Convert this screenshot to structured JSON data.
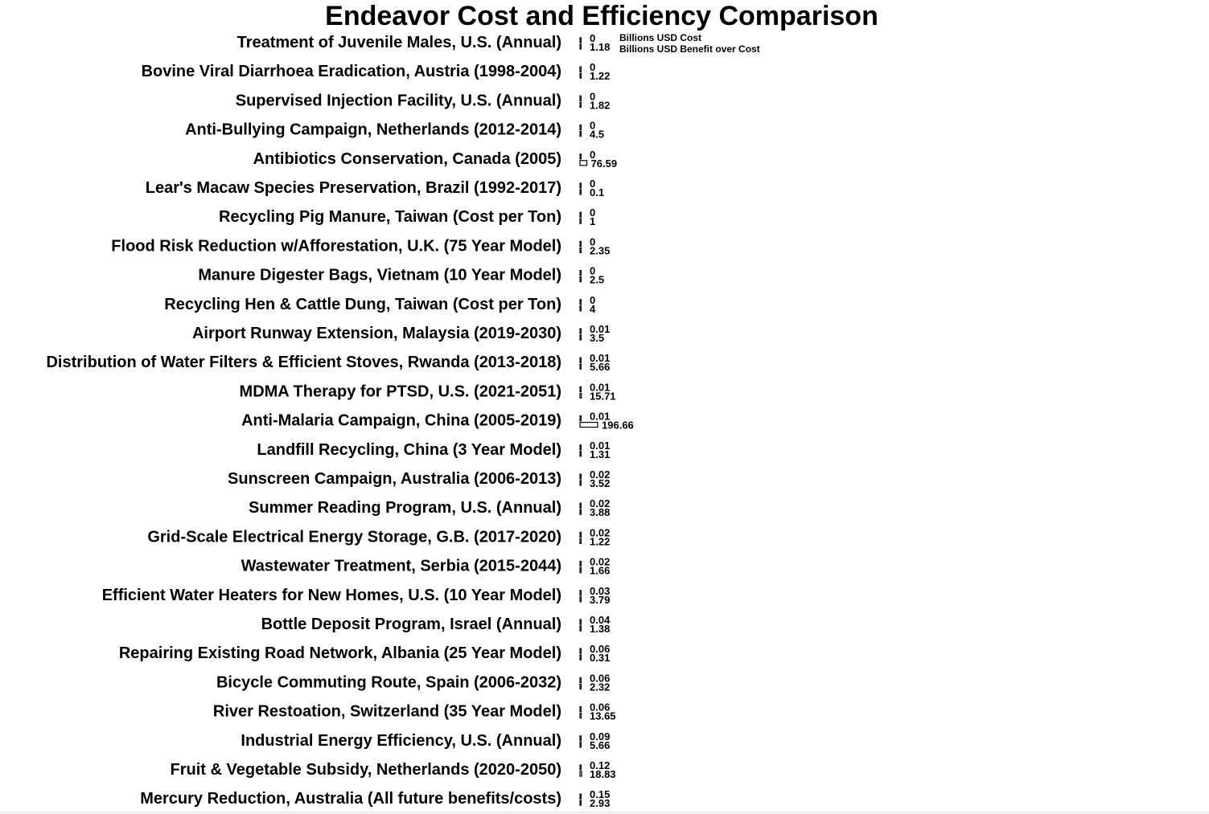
{
  "chart_data": {
    "type": "bar",
    "orientation": "horizontal",
    "title": "Endeavor Cost and Efficiency Comparison",
    "categories": [
      "Treatment of Juvenile Males, U.S. (Annual)",
      "Bovine Viral Diarrhoea Eradication, Austria (1998-2004)",
      "Supervised Injection Facility, U.S. (Annual)",
      "Anti-Bullying Campaign, Netherlands (2012-2014)",
      "Antibiotics Conservation, Canada (2005)",
      "Lear's Macaw Species Preservation, Brazil (1992-2017)",
      "Recycling Pig Manure, Taiwan (Cost per Ton)",
      "Flood Risk Reduction w/Afforestation, U.K. (75 Year Model)",
      "Manure Digester Bags, Vietnam (10 Year Model)",
      "Recycling Hen & Cattle Dung, Taiwan (Cost per Ton)",
      "Airport Runway Extension, Malaysia (2019-2030)",
      "Distribution of Water Filters & Efficient Stoves, Rwanda (2013-2018)",
      "MDMA Therapy for PTSD, U.S. (2021-2051)",
      "Anti-Malaria Campaign, China (2005-2019)",
      "Landfill Recycling, China (3 Year Model)",
      "Sunscreen Campaign, Australia (2006-2013)",
      "Summer Reading Program, U.S. (Annual)",
      "Grid-Scale Electrical Energy Storage, G.B. (2017-2020)",
      "Wastewater Treatment, Serbia (2015-2044)",
      "Efficient Water Heaters for New Homes, U.S. (10 Year Model)",
      "Bottle Deposit Program, Israel (Annual)",
      "Repairing Existing Road Network, Albania (25 Year Model)",
      "Bicycle Commuting Route, Spain (2006-2032)",
      "River Restoation, Switzerland (35 Year Model)",
      "Industrial Energy Efficiency, U.S. (Annual)",
      "Fruit & Vegetable Subsidy, Netherlands (2020-2050)",
      "Mercury Reduction, Australia (All future benefits/costs)"
    ],
    "series": [
      {
        "name": "Billions USD Cost",
        "values": [
          0,
          0,
          0,
          0,
          0,
          0,
          0,
          0,
          0,
          0,
          0.01,
          0.01,
          0.01,
          0.01,
          0.01,
          0.02,
          0.02,
          0.02,
          0.02,
          0.03,
          0.04,
          0.06,
          0.06,
          0.06,
          0.09,
          0.12,
          0.15
        ],
        "labels": [
          "0",
          "0",
          "0",
          "0",
          "0",
          "0",
          "0",
          "0",
          "0",
          "0",
          "0.01",
          "0.01",
          "0.01",
          "0.01",
          "0.01",
          "0.02",
          "0.02",
          "0.02",
          "0.02",
          "0.03",
          "0.04",
          "0.06",
          "0.06",
          "0.06",
          "0.09",
          "0.12",
          "0.15"
        ]
      },
      {
        "name": "Billions USD Benefit over Cost",
        "values": [
          1.18,
          1.22,
          1.82,
          4.5,
          76.59,
          0.1,
          1,
          2.35,
          2.5,
          4,
          3.5,
          5.66,
          15.71,
          196.66,
          1.31,
          3.52,
          3.88,
          1.22,
          1.66,
          3.79,
          1.38,
          0.31,
          2.32,
          13.65,
          5.66,
          18.83,
          2.93
        ],
        "labels": [
          "1.18",
          "1.22",
          "1.82",
          "4.5",
          "76.59",
          "0.1",
          "1",
          "2.35",
          "2.5",
          "4",
          "3.5",
          "5.66",
          "15.71",
          "196.66",
          "1.31",
          "3.52",
          "3.88",
          "1.22",
          "1.66",
          "3.79",
          "1.38",
          "0.31",
          "2.32",
          "13.65",
          "5.66",
          "18.83",
          "2.93"
        ]
      }
    ],
    "legend": "inline beside first category",
    "grid": false,
    "colors": {
      "bar_fill": "#ffffff",
      "bar_stroke": "#000000",
      "text": "#000000"
    }
  }
}
